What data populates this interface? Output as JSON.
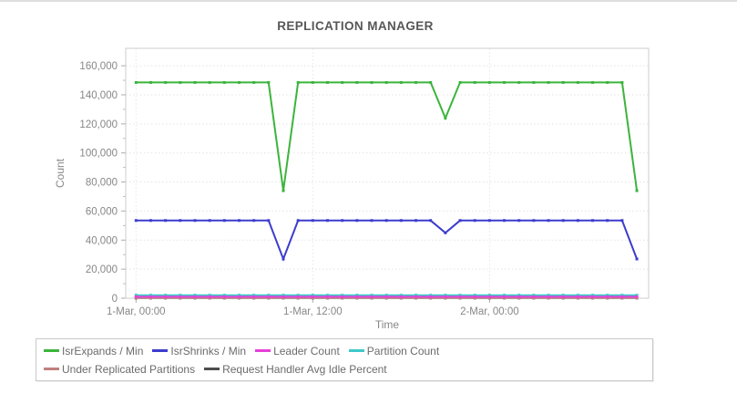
{
  "chart_data": {
    "type": "line",
    "title": "REPLICATION MANAGER",
    "xlabel": "Time",
    "ylabel": "Count",
    "x_unit": "hours since 1-Mar 00:00",
    "xlim": [
      -0.7,
      34.8
    ],
    "ylim": [
      0,
      172000
    ],
    "yticks": [
      0,
      20000,
      40000,
      60000,
      80000,
      100000,
      120000,
      140000,
      160000
    ],
    "y_minor_step": 10000,
    "xticks": [
      {
        "t": 0,
        "label": "1-Mar, 00:00"
      },
      {
        "t": 12,
        "label": "1-Mar, 12:00"
      },
      {
        "t": 24,
        "label": "2-Mar, 00:00"
      }
    ],
    "grid": true,
    "legend_position": "bottom",
    "marker_every_hours": 1,
    "series": [
      {
        "name": "IsrExpands / Min",
        "color": "#3cb43c",
        "points": [
          [
            0,
            148500
          ],
          [
            9,
            148500
          ],
          [
            10,
            74000
          ],
          [
            11,
            148500
          ],
          [
            20,
            148500
          ],
          [
            21,
            124000
          ],
          [
            22,
            148500
          ],
          [
            33,
            148500
          ],
          [
            34,
            74000
          ]
        ]
      },
      {
        "name": "IsrShrinks / Min",
        "color": "#3c3ccd",
        "points": [
          [
            0,
            53500
          ],
          [
            9,
            53500
          ],
          [
            10,
            27000
          ],
          [
            11,
            53500
          ],
          [
            20,
            53500
          ],
          [
            21,
            45000
          ],
          [
            22,
            53500
          ],
          [
            33,
            53500
          ],
          [
            34,
            27000
          ]
        ]
      },
      {
        "name": "Leader Count",
        "color": "#e640d9",
        "points": [
          [
            0,
            1000
          ],
          [
            34,
            1000
          ]
        ]
      },
      {
        "name": "Partition Count",
        "color": "#3ec9c9",
        "points": [
          [
            0,
            2100
          ],
          [
            34,
            2100
          ]
        ]
      },
      {
        "name": "Under Replicated Partitions",
        "color": "#c17f7f",
        "points": [
          [
            0,
            300
          ],
          [
            34,
            300
          ]
        ]
      },
      {
        "name": "Request Handler Avg Idle Percent",
        "color": "#4d4d4d",
        "points": [
          [
            0,
            100
          ],
          [
            34,
            100
          ]
        ]
      }
    ],
    "legend_rows": [
      [
        0,
        1,
        2,
        3
      ],
      [
        4,
        5
      ]
    ]
  }
}
